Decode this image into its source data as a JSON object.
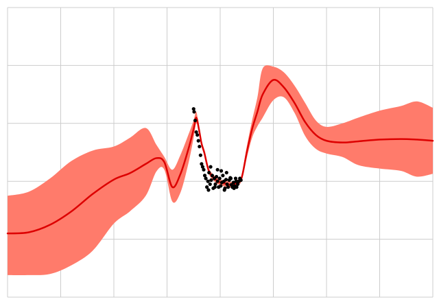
{
  "chart_data": {
    "type": "line",
    "title": "",
    "xlabel": "",
    "ylabel": "",
    "xlim": [
      -4,
      4
    ],
    "ylim": [
      -2,
      3
    ],
    "grid": true,
    "legend": "none",
    "x_gridlines": [
      -4,
      -3,
      -2,
      -1,
      0,
      1,
      2,
      3,
      4
    ],
    "y_gridlines": [
      -2,
      -1,
      0,
      1,
      2,
      3
    ],
    "colors": {
      "mean": "#dd0000",
      "band": "#ff7b6b",
      "points": "#000000",
      "grid": "#cccccc"
    },
    "series": [
      {
        "kind": "mean",
        "x": [
          -4.0,
          -3.6,
          -3.2,
          -2.8,
          -2.4,
          -2.0,
          -1.7,
          -1.4,
          -1.2,
          -1.05,
          -0.9,
          -0.75,
          -0.6,
          -0.5,
          -0.45,
          -0.4,
          -0.35,
          -0.3,
          -0.25,
          -0.2,
          -0.1,
          0.0,
          0.1,
          0.2,
          0.3,
          0.4,
          0.5,
          0.6,
          0.7,
          0.8,
          1.0,
          1.2,
          1.4,
          1.6,
          1.8,
          2.0,
          2.3,
          2.6,
          3.0,
          3.4,
          3.7,
          4.0
        ],
        "y": [
          -0.9,
          -0.88,
          -0.75,
          -0.52,
          -0.22,
          0.03,
          0.14,
          0.3,
          0.4,
          0.33,
          -0.1,
          0.12,
          0.55,
          0.9,
          1.1,
          0.9,
          0.65,
          0.5,
          0.3,
          0.15,
          0.04,
          -0.02,
          -0.04,
          -0.06,
          -0.03,
          0.05,
          0.5,
          0.9,
          1.2,
          1.5,
          1.75,
          1.62,
          1.35,
          1.02,
          0.8,
          0.7,
          0.67,
          0.69,
          0.72,
          0.73,
          0.72,
          0.7
        ]
      },
      {
        "kind": "band_upper",
        "x": [
          -4.0,
          -3.6,
          -3.2,
          -2.8,
          -2.4,
          -2.0,
          -1.7,
          -1.4,
          -1.2,
          -1.05,
          -0.9,
          -0.75,
          -0.6,
          -0.5,
          -0.45,
          -0.4,
          -0.35,
          -0.3,
          -0.25,
          -0.2,
          -0.1,
          0.0,
          0.1,
          0.2,
          0.3,
          0.4,
          0.5,
          0.6,
          0.7,
          0.8,
          1.0,
          1.2,
          1.4,
          1.6,
          1.8,
          2.0,
          2.3,
          2.6,
          3.0,
          3.4,
          3.7,
          4.0
        ],
        "y": [
          -0.25,
          -0.18,
          0.05,
          0.35,
          0.53,
          0.6,
          0.75,
          0.92,
          0.63,
          0.42,
          0.2,
          0.45,
          0.8,
          1.05,
          1.2,
          0.95,
          0.7,
          0.55,
          0.35,
          0.2,
          0.09,
          0.03,
          0.01,
          -0.01,
          0.02,
          0.1,
          0.6,
          1.05,
          1.45,
          1.95,
          1.98,
          1.88,
          1.65,
          1.35,
          1.05,
          0.94,
          1.0,
          1.1,
          1.22,
          1.3,
          1.38,
          1.27
        ]
      },
      {
        "kind": "band_lower",
        "x": [
          -4.0,
          -3.6,
          -3.2,
          -2.8,
          -2.4,
          -2.0,
          -1.7,
          -1.4,
          -1.2,
          -1.05,
          -0.9,
          -0.75,
          -0.6,
          -0.5,
          -0.45,
          -0.4,
          -0.35,
          -0.3,
          -0.25,
          -0.2,
          -0.1,
          0.0,
          0.1,
          0.2,
          0.3,
          0.4,
          0.5,
          0.6,
          0.7,
          0.8,
          1.0,
          1.2,
          1.4,
          1.6,
          1.8,
          2.0,
          2.3,
          2.6,
          3.0,
          3.4,
          3.7,
          4.0
        ],
        "y": [
          -1.62,
          -1.62,
          -1.6,
          -1.45,
          -1.2,
          -0.73,
          -0.52,
          -0.25,
          0.17,
          0.2,
          -0.35,
          -0.2,
          0.3,
          0.75,
          1.0,
          0.85,
          0.6,
          0.45,
          0.25,
          0.1,
          -0.01,
          -0.07,
          -0.09,
          -0.11,
          -0.08,
          0.0,
          0.4,
          0.75,
          0.95,
          1.1,
          1.4,
          1.45,
          1.18,
          0.78,
          0.56,
          0.48,
          0.42,
          0.28,
          0.22,
          0.18,
          0.08,
          0.13
        ]
      },
      {
        "kind": "points",
        "x": [
          -0.5,
          -0.49,
          -0.47,
          -0.45,
          -0.43,
          -0.41,
          -0.39,
          -0.37,
          -0.35,
          -0.33,
          -0.31,
          -0.29,
          -0.27,
          -0.25,
          -0.23,
          -0.21,
          -0.19,
          -0.17,
          -0.15,
          -0.13,
          -0.11,
          -0.09,
          -0.07,
          -0.05,
          -0.03,
          -0.01,
          0.01,
          0.03,
          0.05,
          0.07,
          0.09,
          0.11,
          0.13,
          0.15,
          0.17,
          0.19,
          0.21,
          0.23,
          0.25,
          0.27,
          0.29,
          0.31,
          0.33,
          0.35,
          0.37,
          0.39,
          -0.18,
          -0.05,
          0.08,
          0.2,
          0.12,
          -0.1,
          0.3,
          0.02,
          -0.22,
          0.26
        ],
        "y": [
          1.25,
          1.2,
          1.05,
          0.85,
          0.8,
          0.7,
          0.6,
          0.45,
          0.3,
          0.25,
          0.2,
          0.1,
          0.05,
          -0.1,
          0.0,
          0.15,
          -0.05,
          0.02,
          0.1,
          -0.12,
          0.05,
          -0.05,
          0.08,
          0.0,
          -0.1,
          0.05,
          -0.08,
          -0.02,
          0.1,
          0.0,
          -0.12,
          0.03,
          -0.05,
          -0.1,
          0.02,
          0.06,
          -0.06,
          -0.1,
          -0.02,
          -0.08,
          0.05,
          -0.1,
          -0.05,
          0.0,
          0.05,
          0.02,
          0.25,
          0.2,
          -0.15,
          0.05,
          0.15,
          -0.1,
          0.0,
          0.18,
          -0.15,
          -0.12
        ]
      }
    ]
  }
}
